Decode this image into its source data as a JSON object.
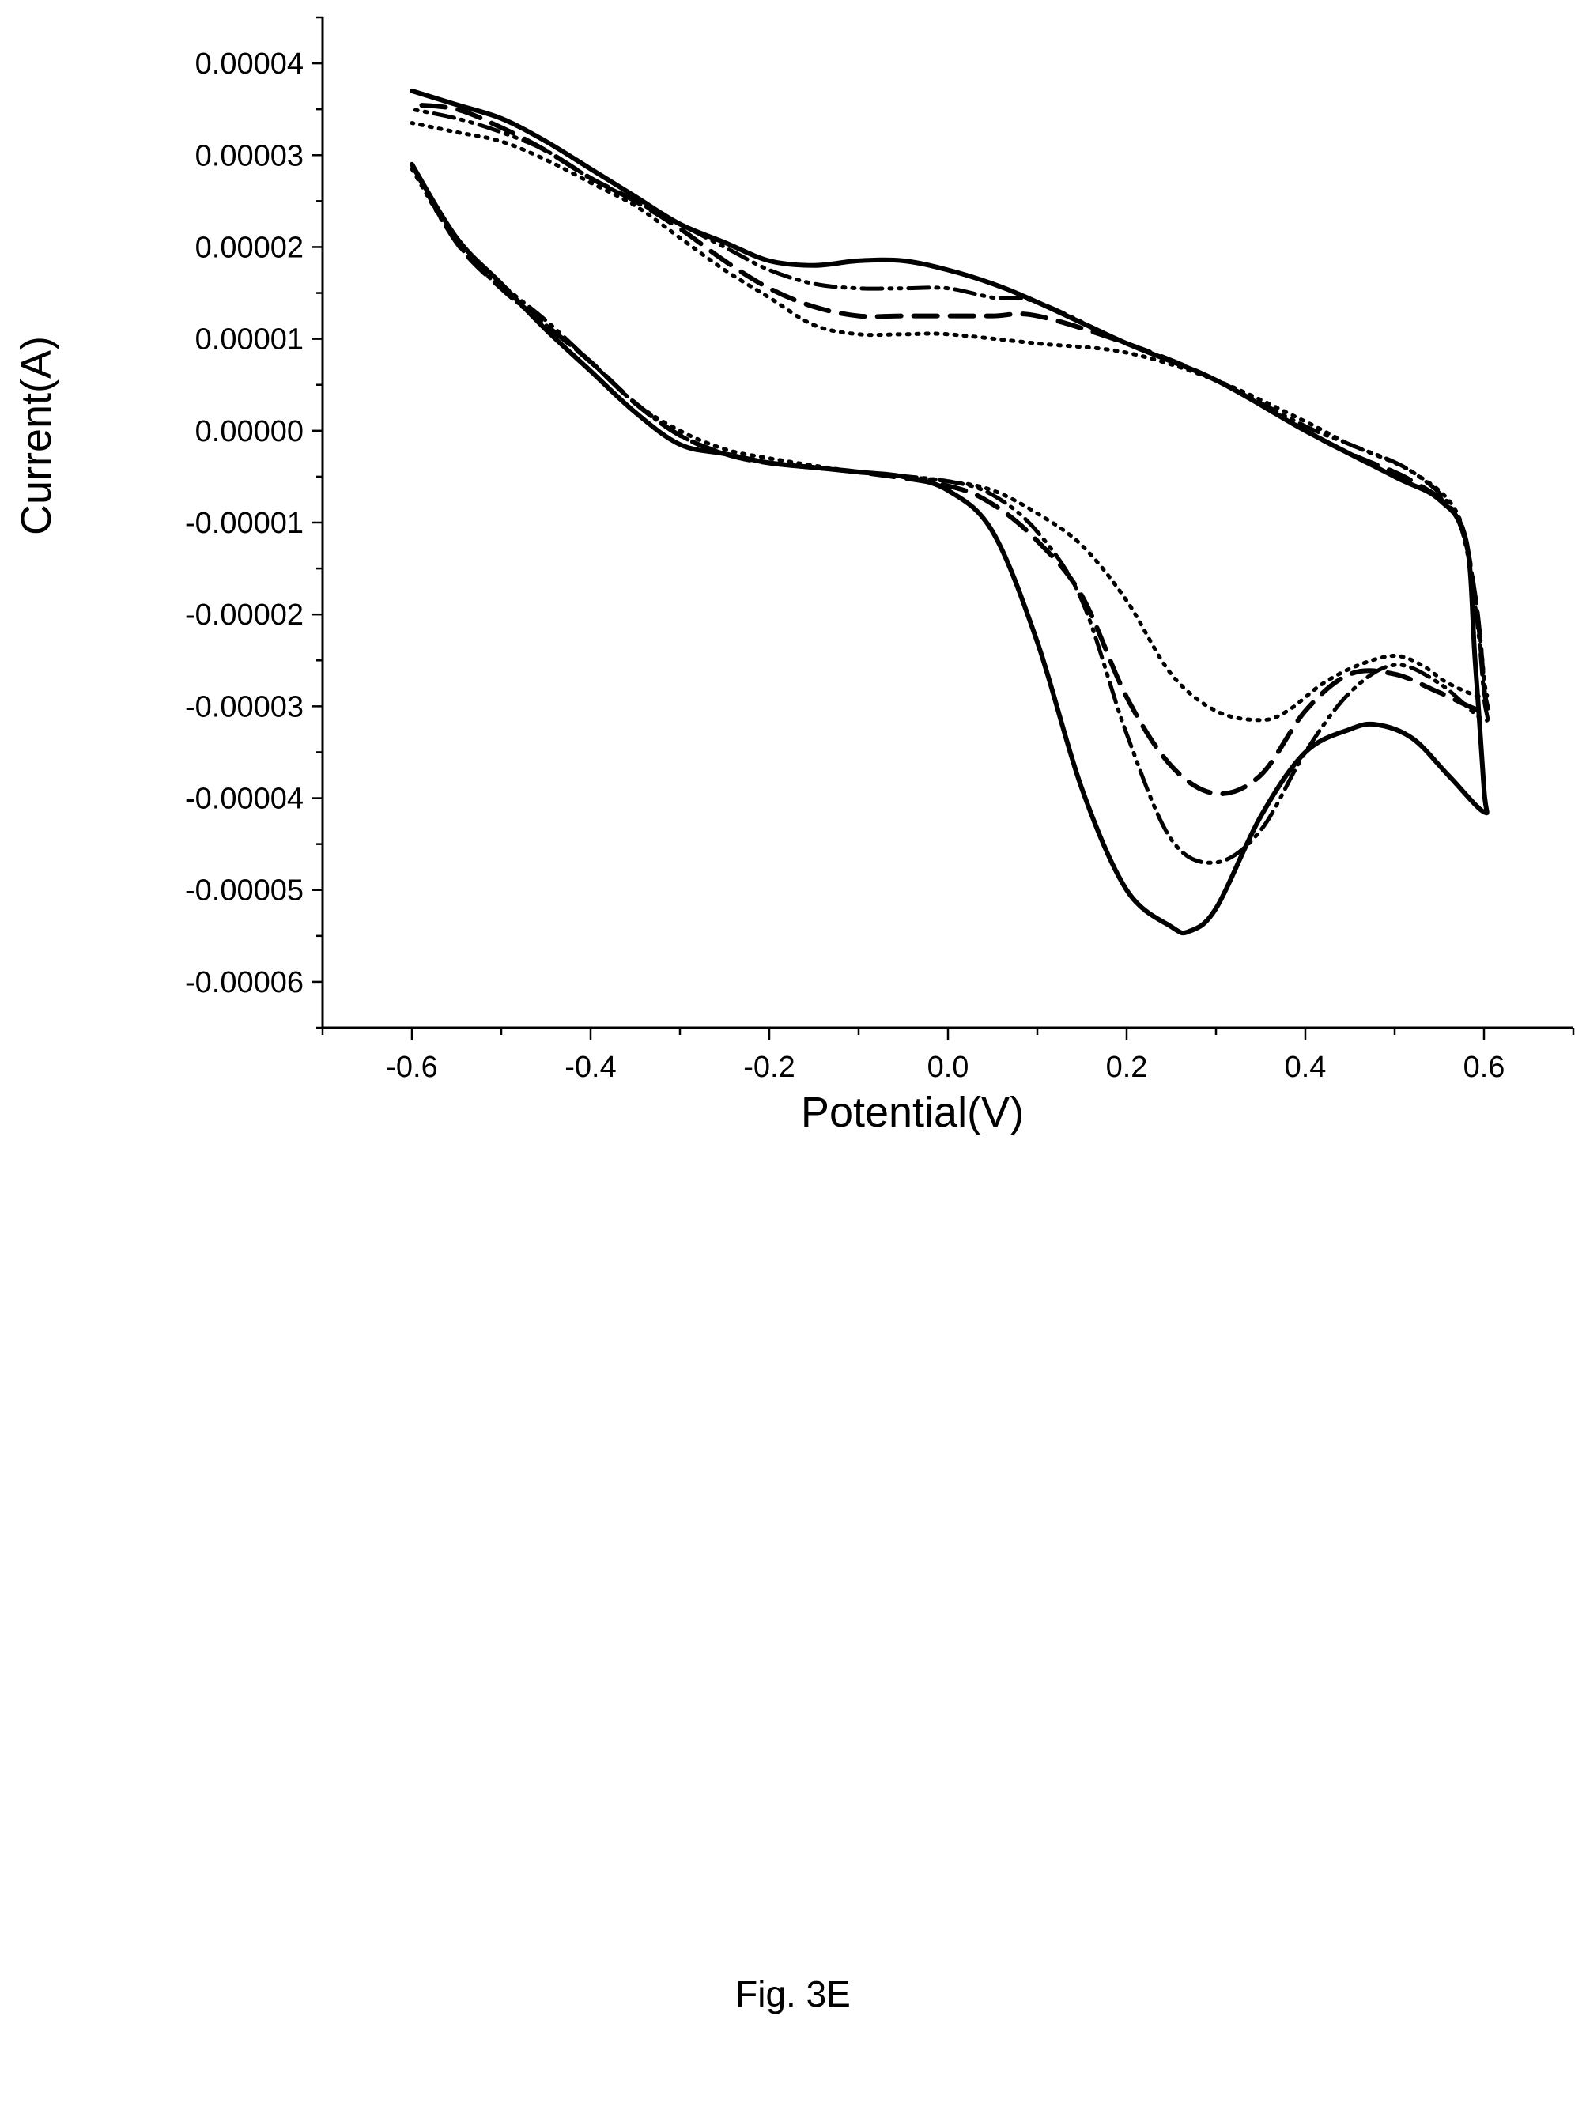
{
  "caption": "Fig. 3E",
  "chart_data": {
    "type": "line",
    "title": "",
    "xlabel": "Potential(V)",
    "ylabel": "Current(A)",
    "xlim": [
      -0.7,
      0.7
    ],
    "ylim": [
      -6.5e-05,
      4.5e-05
    ],
    "x_ticks": [
      -0.6,
      -0.4,
      -0.2,
      0.0,
      0.2,
      0.4,
      0.6
    ],
    "x_tick_labels": [
      "-0.6",
      "-0.4",
      "-0.2",
      "0.0",
      "0.2",
      "0.4",
      "0.6"
    ],
    "y_ticks": [
      4e-05,
      3e-05,
      2e-05,
      1e-05,
      0.0,
      -1e-05,
      -2e-05,
      -3e-05,
      -4e-05,
      -5e-05,
      -6e-05
    ],
    "y_tick_labels": [
      "0.00004",
      "0.00003",
      "0.00002",
      "0.00001",
      "0.00000",
      "-0.00001",
      "-0.00002",
      "-0.00003",
      "-0.00004",
      "-0.00005",
      "-0.00006"
    ],
    "grid": false,
    "legend": "none",
    "series": [
      {
        "style": "solid",
        "color": "#000000",
        "points": [
          [
            -0.6,
            2.9e-05
          ],
          [
            -0.55,
            2.1e-05
          ],
          [
            -0.5,
            1.6e-05
          ],
          [
            -0.45,
            1.1e-05
          ],
          [
            -0.4,
            6.5e-06
          ],
          [
            -0.35,
            2e-06
          ],
          [
            -0.3,
            -1.5e-06
          ],
          [
            -0.25,
            -2.5e-06
          ],
          [
            -0.2,
            -3.5e-06
          ],
          [
            -0.15,
            -4e-06
          ],
          [
            -0.1,
            -4.5e-06
          ],
          [
            -0.05,
            -5e-06
          ],
          [
            0.0,
            -6.5e-06
          ],
          [
            0.05,
            -1.1e-05
          ],
          [
            0.1,
            -2.3e-05
          ],
          [
            0.15,
            -3.9e-05
          ],
          [
            0.2,
            -5e-05
          ],
          [
            0.25,
            -5.4e-05
          ],
          [
            0.27,
            -5.45e-05
          ],
          [
            0.3,
            -5.2e-05
          ],
          [
            0.35,
            -4.2e-05
          ],
          [
            0.4,
            -3.5e-05
          ],
          [
            0.45,
            -3.25e-05
          ],
          [
            0.48,
            -3.2e-05
          ],
          [
            0.52,
            -3.35e-05
          ],
          [
            0.56,
            -3.75e-05
          ],
          [
            0.6,
            -4.15e-05
          ],
          [
            0.6,
            -3.9e-05
          ],
          [
            0.59,
            -2.5e-05
          ],
          [
            0.58,
            -1.2e-05
          ],
          [
            0.55,
            -7.5e-06
          ],
          [
            0.5,
            -5e-06
          ],
          [
            0.4,
            0.0
          ],
          [
            0.3,
            5.5e-06
          ],
          [
            0.2,
            9.5e-06
          ],
          [
            0.1,
            1.4e-05
          ],
          [
            0.05,
            1.6e-05
          ],
          [
            0.0,
            1.75e-05
          ],
          [
            -0.05,
            1.85e-05
          ],
          [
            -0.1,
            1.85e-05
          ],
          [
            -0.15,
            1.8e-05
          ],
          [
            -0.2,
            1.85e-05
          ],
          [
            -0.25,
            2.05e-05
          ],
          [
            -0.3,
            2.25e-05
          ],
          [
            -0.35,
            2.55e-05
          ],
          [
            -0.4,
            2.85e-05
          ],
          [
            -0.45,
            3.15e-05
          ],
          [
            -0.5,
            3.4e-05
          ],
          [
            -0.55,
            3.55e-05
          ],
          [
            -0.6,
            3.7e-05
          ]
        ]
      },
      {
        "style": "dash",
        "color": "#000000",
        "points": [
          [
            -0.6,
            2.9e-05
          ],
          [
            -0.55,
            2.05e-05
          ],
          [
            -0.5,
            1.55e-05
          ],
          [
            -0.45,
            1.15e-05
          ],
          [
            -0.4,
            7.5e-06
          ],
          [
            -0.35,
            3e-06
          ],
          [
            -0.3,
            -5e-07
          ],
          [
            -0.25,
            -2.5e-06
          ],
          [
            -0.2,
            -3.5e-06
          ],
          [
            -0.1,
            -4.5e-06
          ],
          [
            0.0,
            -6e-06
          ],
          [
            0.05,
            -8e-06
          ],
          [
            0.1,
            -1.2e-05
          ],
          [
            0.15,
            -1.8e-05
          ],
          [
            0.2,
            -2.9e-05
          ],
          [
            0.25,
            -3.65e-05
          ],
          [
            0.3,
            -3.95e-05
          ],
          [
            0.35,
            -3.75e-05
          ],
          [
            0.4,
            -3.05e-05
          ],
          [
            0.45,
            -2.65e-05
          ],
          [
            0.5,
            -2.65e-05
          ],
          [
            0.55,
            -2.85e-05
          ],
          [
            0.6,
            -3.05e-05
          ],
          [
            0.6,
            -2.8e-05
          ],
          [
            0.59,
            -1.8e-05
          ],
          [
            0.57,
            -9.5e-06
          ],
          [
            0.52,
            -5.5e-06
          ],
          [
            0.45,
            -2.5e-06
          ],
          [
            0.4,
            0.0
          ],
          [
            0.3,
            5.5e-06
          ],
          [
            0.2,
            9.5e-06
          ],
          [
            0.1,
            1.25e-05
          ],
          [
            0.05,
            1.25e-05
          ],
          [
            0.0,
            1.25e-05
          ],
          [
            -0.05,
            1.25e-05
          ],
          [
            -0.1,
            1.25e-05
          ],
          [
            -0.15,
            1.35e-05
          ],
          [
            -0.2,
            1.55e-05
          ],
          [
            -0.25,
            1.85e-05
          ],
          [
            -0.3,
            2.2e-05
          ],
          [
            -0.35,
            2.5e-05
          ],
          [
            -0.4,
            2.75e-05
          ],
          [
            -0.45,
            3.05e-05
          ],
          [
            -0.5,
            3.3e-05
          ],
          [
            -0.55,
            3.5e-05
          ],
          [
            -0.6,
            3.55e-05
          ]
        ]
      },
      {
        "style": "dot",
        "color": "#000000",
        "points": [
          [
            -0.6,
            2.85e-05
          ],
          [
            -0.55,
            2.05e-05
          ],
          [
            -0.5,
            1.55e-05
          ],
          [
            -0.45,
            1.15e-05
          ],
          [
            -0.4,
            7.5e-06
          ],
          [
            -0.35,
            3e-06
          ],
          [
            -0.3,
            0.0
          ],
          [
            -0.25,
            -2e-06
          ],
          [
            -0.2,
            -3e-06
          ],
          [
            -0.1,
            -4.5e-06
          ],
          [
            0.0,
            -5.5e-06
          ],
          [
            0.05,
            -6.5e-06
          ],
          [
            0.1,
            -9e-06
          ],
          [
            0.15,
            -1.25e-05
          ],
          [
            0.2,
            -1.85e-05
          ],
          [
            0.25,
            -2.65e-05
          ],
          [
            0.3,
            -3.05e-05
          ],
          [
            0.35,
            -3.15e-05
          ],
          [
            0.38,
            -3.05e-05
          ],
          [
            0.42,
            -2.75e-05
          ],
          [
            0.46,
            -2.55e-05
          ],
          [
            0.5,
            -2.45e-05
          ],
          [
            0.53,
            -2.55e-05
          ],
          [
            0.56,
            -2.75e-05
          ],
          [
            0.6,
            -2.9e-05
          ],
          [
            0.6,
            -2.7e-05
          ],
          [
            0.59,
            -1.8e-05
          ],
          [
            0.57,
            -9e-06
          ],
          [
            0.52,
            -4.5e-06
          ],
          [
            0.45,
            -1.5e-06
          ],
          [
            0.4,
            1e-06
          ],
          [
            0.3,
            5.5e-06
          ],
          [
            0.2,
            8.5e-06
          ],
          [
            0.1,
            9.5e-06
          ],
          [
            0.0,
            1.05e-05
          ],
          [
            -0.05,
            1.05e-05
          ],
          [
            -0.1,
            1.05e-05
          ],
          [
            -0.15,
            1.15e-05
          ],
          [
            -0.2,
            1.45e-05
          ],
          [
            -0.25,
            1.75e-05
          ],
          [
            -0.3,
            2.1e-05
          ],
          [
            -0.35,
            2.45e-05
          ],
          [
            -0.4,
            2.7e-05
          ],
          [
            -0.45,
            2.95e-05
          ],
          [
            -0.5,
            3.15e-05
          ],
          [
            -0.55,
            3.25e-05
          ],
          [
            -0.6,
            3.35e-05
          ]
        ]
      },
      {
        "style": "dash-dot-dot",
        "color": "#000000",
        "points": [
          [
            -0.6,
            2.9e-05
          ],
          [
            -0.55,
            2.1e-05
          ],
          [
            -0.5,
            1.6e-05
          ],
          [
            -0.45,
            1.2e-05
          ],
          [
            -0.4,
            7.5e-06
          ],
          [
            -0.35,
            3e-06
          ],
          [
            -0.3,
            -5e-07
          ],
          [
            -0.25,
            -2.5e-06
          ],
          [
            -0.2,
            -3.5e-06
          ],
          [
            -0.1,
            -4.5e-06
          ],
          [
            0.0,
            -5.5e-06
          ],
          [
            0.05,
            -7e-06
          ],
          [
            0.1,
            -1.1e-05
          ],
          [
            0.15,
            -1.85e-05
          ],
          [
            0.2,
            -3.3e-05
          ],
          [
            0.25,
            -4.45e-05
          ],
          [
            0.3,
            -4.7e-05
          ],
          [
            0.35,
            -4.35e-05
          ],
          [
            0.4,
            -3.5e-05
          ],
          [
            0.45,
            -2.85e-05
          ],
          [
            0.5,
            -2.55e-05
          ],
          [
            0.55,
            -2.75e-05
          ],
          [
            0.6,
            -3.15e-05
          ],
          [
            0.6,
            -2.9e-05
          ],
          [
            0.59,
            -1.9e-05
          ],
          [
            0.57,
            -9.5e-06
          ],
          [
            0.52,
            -4.5e-06
          ],
          [
            0.45,
            -1.5e-06
          ],
          [
            0.4,
            5e-07
          ],
          [
            0.3,
            5.5e-06
          ],
          [
            0.2,
            9.5e-06
          ],
          [
            0.1,
            1.4e-05
          ],
          [
            0.05,
            1.45e-05
          ],
          [
            0.0,
            1.55e-05
          ],
          [
            -0.05,
            1.55e-05
          ],
          [
            -0.1,
            1.55e-05
          ],
          [
            -0.15,
            1.6e-05
          ],
          [
            -0.2,
            1.75e-05
          ],
          [
            -0.25,
            2e-05
          ],
          [
            -0.3,
            2.25e-05
          ],
          [
            -0.35,
            2.5e-05
          ],
          [
            -0.4,
            2.75e-05
          ],
          [
            -0.45,
            3.05e-05
          ],
          [
            -0.5,
            3.25e-05
          ],
          [
            -0.55,
            3.4e-05
          ],
          [
            -0.6,
            3.5e-05
          ]
        ]
      }
    ]
  }
}
